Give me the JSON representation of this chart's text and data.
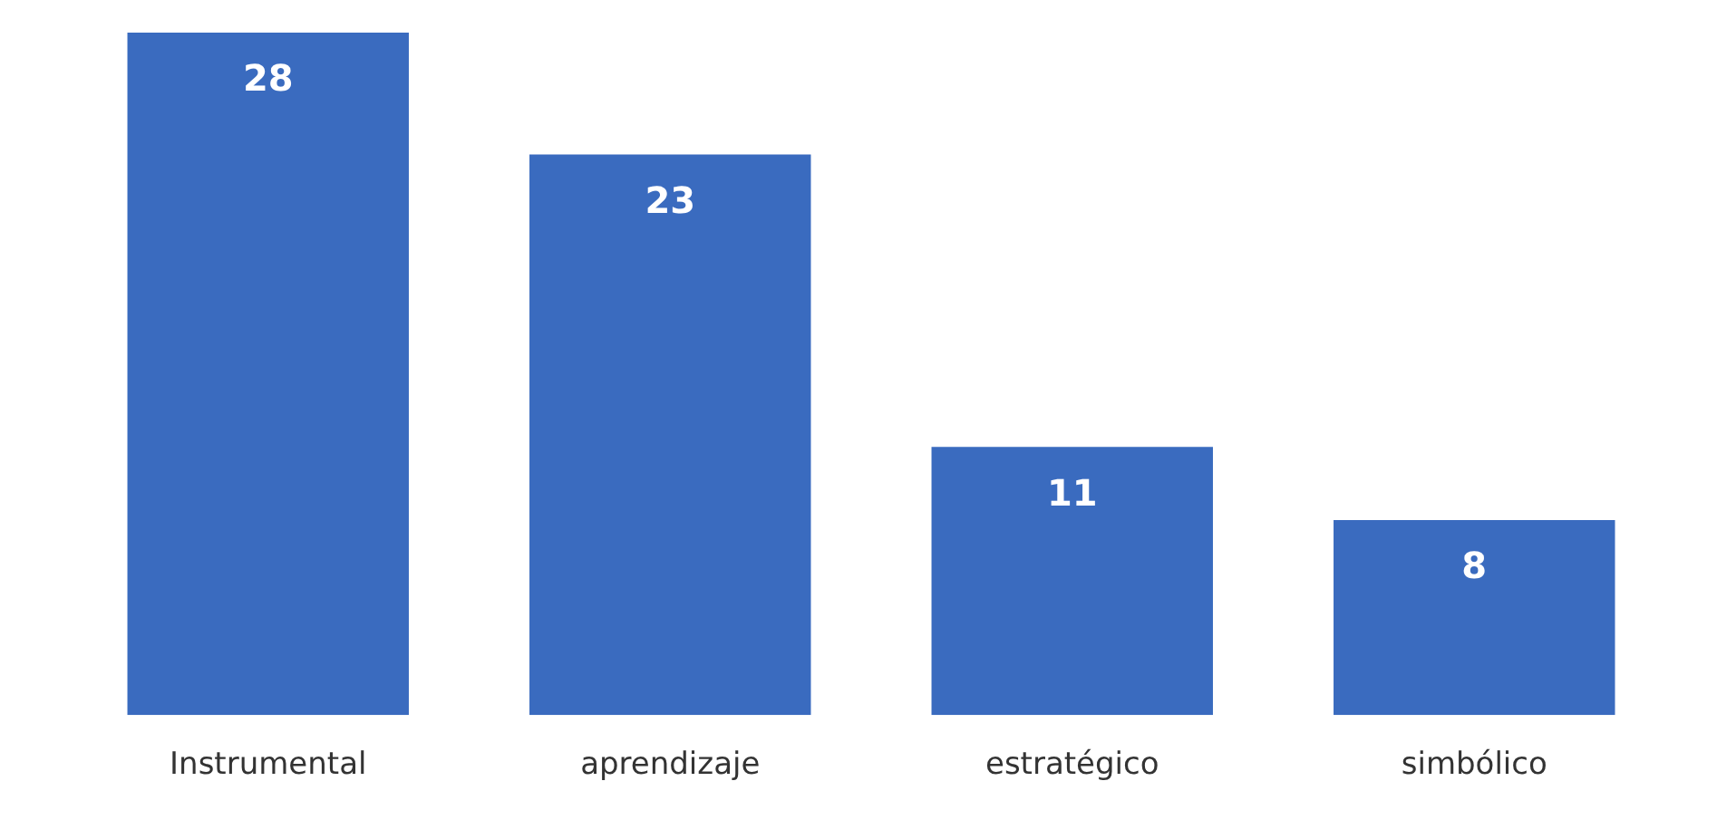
{
  "chart_data": {
    "type": "bar",
    "categories": [
      "Instrumental",
      "aprendizaje",
      "estratégico",
      "simbólico"
    ],
    "values": [
      28,
      23,
      11,
      8
    ],
    "color": "#3a6bbf",
    "data_labels": true,
    "grid": false,
    "legend": false
  }
}
